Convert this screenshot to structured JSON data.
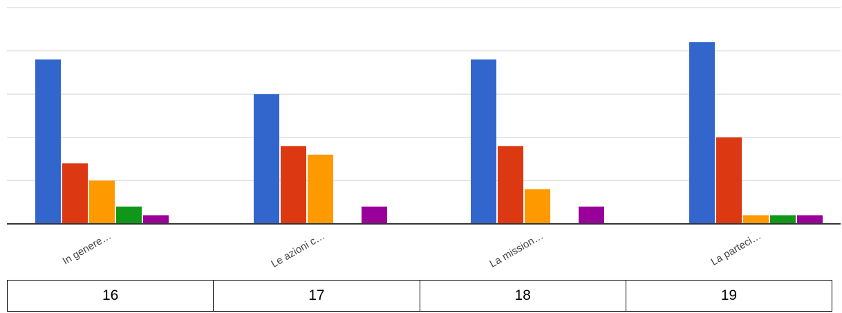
{
  "chart_data": {
    "type": "bar",
    "categories": [
      "In genere…",
      "Le azioni c…",
      "La mission…",
      "La parteci…"
    ],
    "series": [
      {
        "color": "#3366cc",
        "values": [
          19,
          15,
          19,
          21
        ]
      },
      {
        "color": "#dc3912",
        "values": [
          7,
          9,
          9,
          10
        ]
      },
      {
        "color": "#ff9900",
        "values": [
          5,
          8,
          4,
          1
        ]
      },
      {
        "color": "#109618",
        "values": [
          2,
          0,
          0,
          1
        ]
      },
      {
        "color": "#990099",
        "values": [
          1,
          2,
          2,
          1
        ]
      }
    ],
    "ylim": [
      0,
      25
    ],
    "grid": true
  },
  "table": {
    "cells": [
      "16",
      "17",
      "18",
      "19"
    ]
  }
}
